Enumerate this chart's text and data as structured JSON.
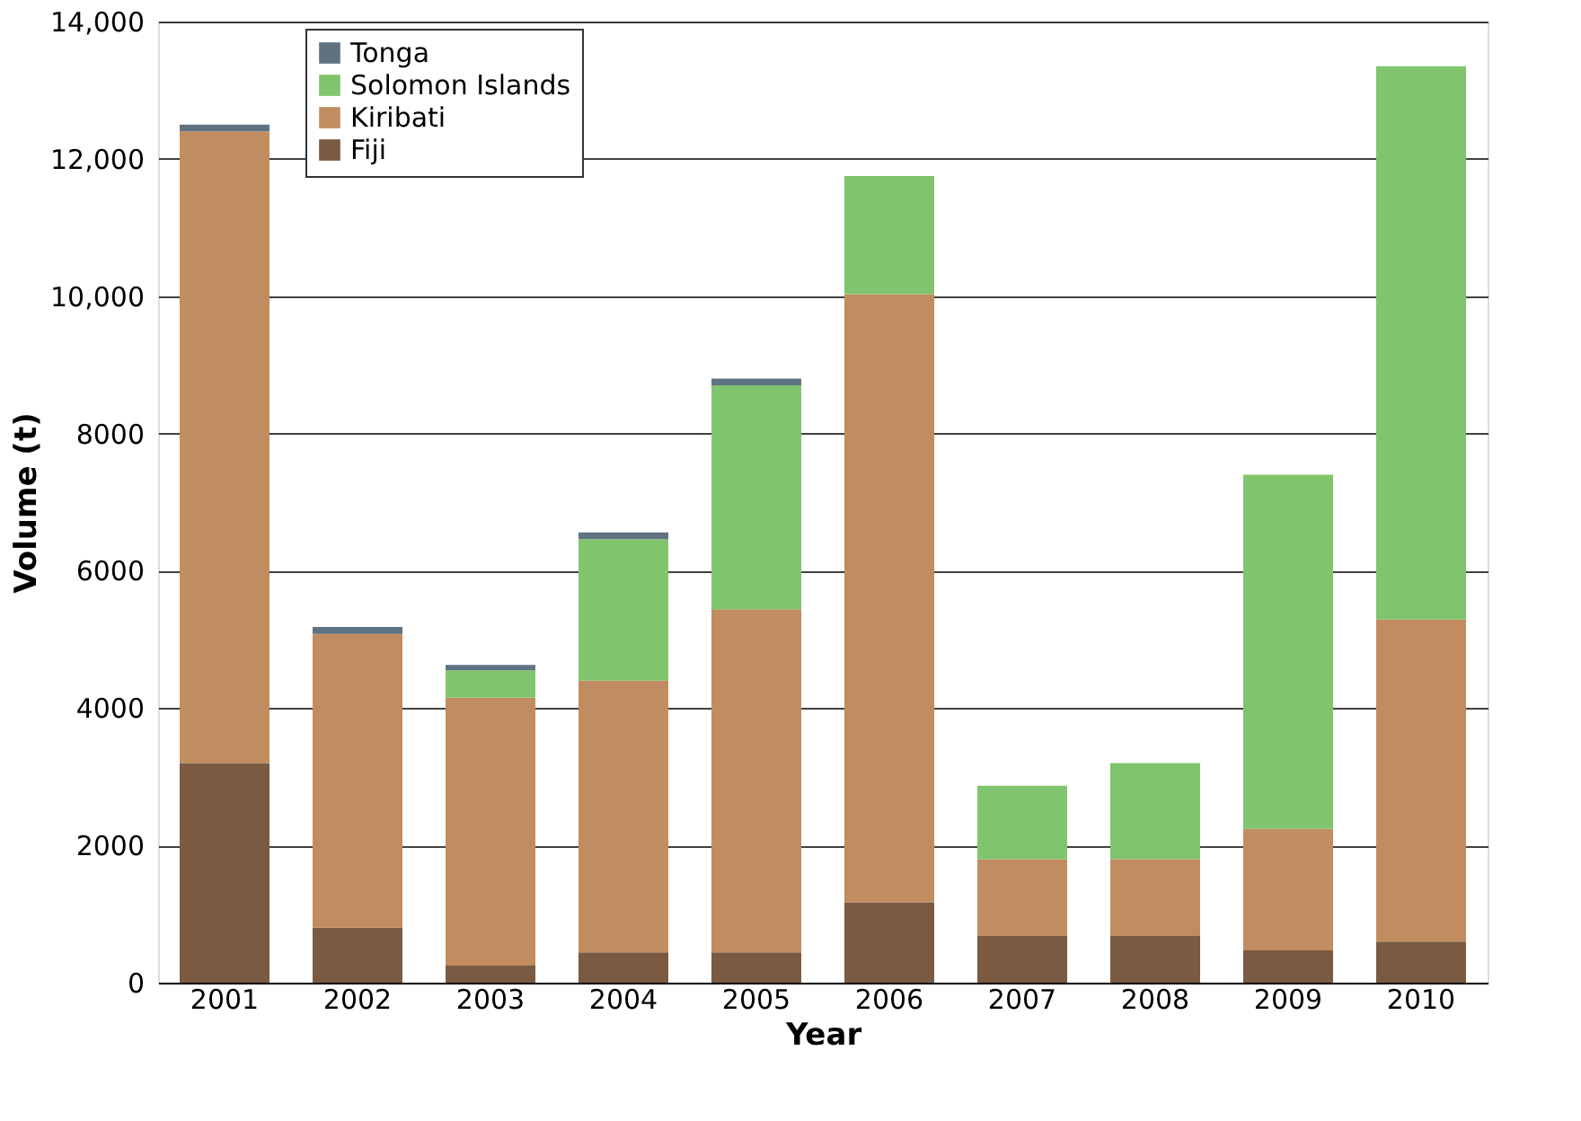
{
  "chart_data": {
    "type": "bar",
    "stacked": true,
    "xlabel": "Year",
    "ylabel": "Volume (t)",
    "categories": [
      "2001",
      "2002",
      "2003",
      "2004",
      "2005",
      "2006",
      "2007",
      "2008",
      "2009",
      "2010"
    ],
    "series": [
      {
        "name": "Fiji",
        "color": "#7a5a41",
        "values": [
          3200,
          800,
          250,
          440,
          440,
          1170,
          680,
          680,
          470,
          600
        ]
      },
      {
        "name": "Kiribati",
        "color": "#c18c5f",
        "values": [
          9200,
          4280,
          3900,
          3960,
          5000,
          8860,
          1120,
          1120,
          1770,
          4690
        ]
      },
      {
        "name": "Solomon Islands",
        "color": "#80c56e",
        "values": [
          0,
          0,
          400,
          2060,
          3260,
          1720,
          1070,
          1400,
          5160,
          8060
        ]
      },
      {
        "name": "Tonga",
        "color": "#5f7282",
        "values": [
          100,
          100,
          80,
          100,
          100,
          0,
          0,
          0,
          0,
          0
        ]
      }
    ],
    "ylim": [
      0,
      14000
    ],
    "yticks": [
      0,
      2000,
      4000,
      6000,
      8000,
      {
        "value": 10000,
        "label": "10,000"
      },
      {
        "value": 12000,
        "label": "12,000"
      },
      {
        "value": 14000,
        "label": "14,000"
      }
    ],
    "grid": "y",
    "legend": "top left"
  }
}
